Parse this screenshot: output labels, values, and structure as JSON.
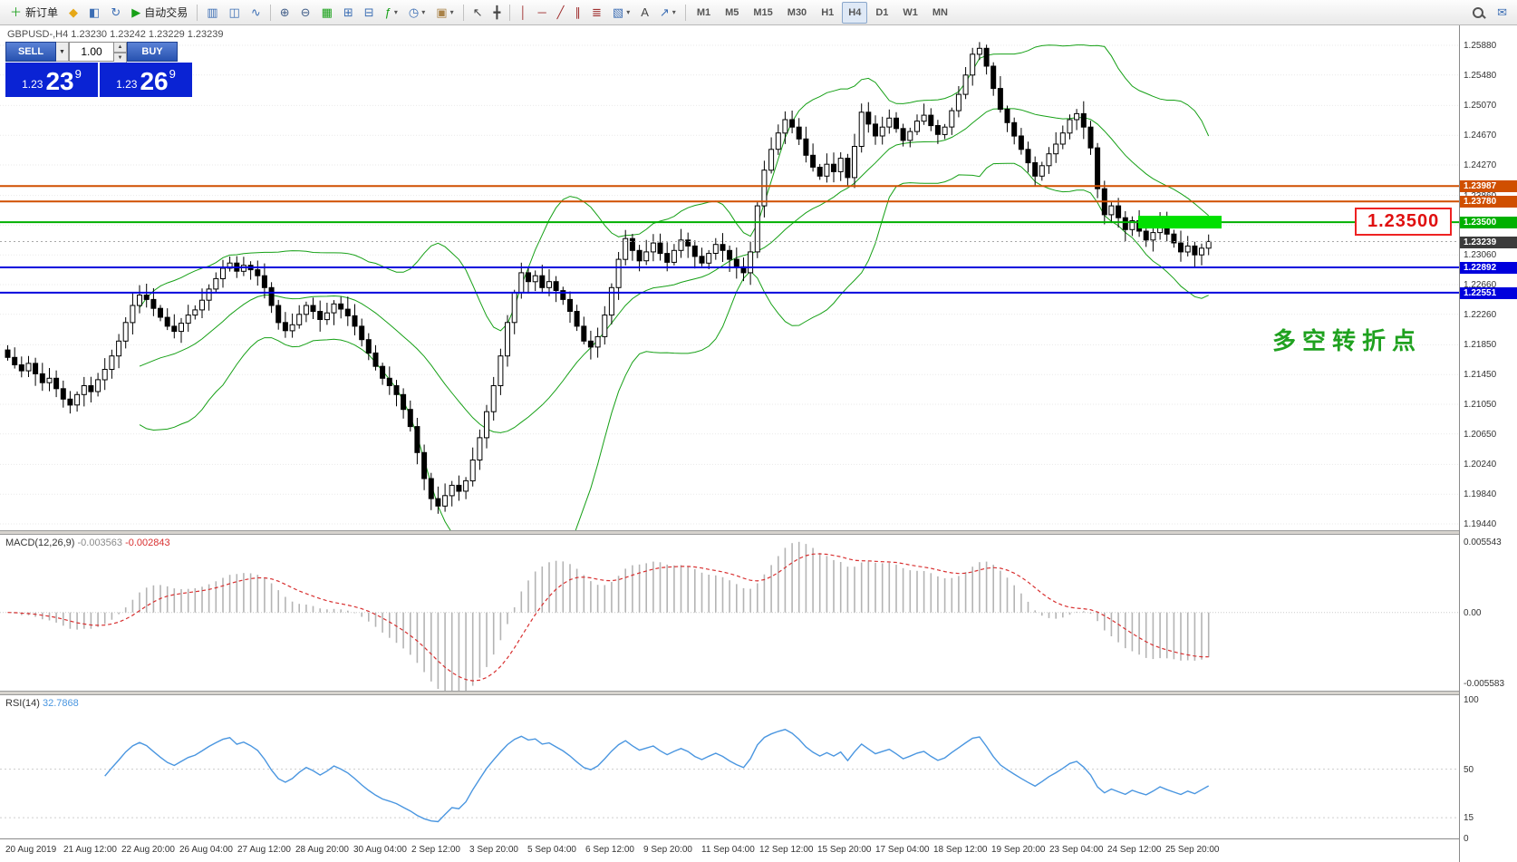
{
  "toolbar": {
    "new_order_label": "新订单",
    "autotrade_label": "自动交易",
    "items": [
      {
        "type": "button",
        "name": "new-order-button",
        "glyph": "＋",
        "glyph_color": "#1fa01f",
        "text": "新订单"
      },
      {
        "type": "button",
        "name": "mql-icon-button",
        "glyph": "◆",
        "glyph_color": "#e6a817"
      },
      {
        "type": "button",
        "name": "profiles-button",
        "glyph": "◧",
        "glyph_color": "#3c6eb4"
      },
      {
        "type": "button",
        "name": "refresh-button",
        "glyph": "↻",
        "glyph_color": "#3c6eb4"
      },
      {
        "type": "button",
        "name": "autotrade-button",
        "glyph": "▶",
        "glyph_color": "#18a018",
        "text": "自动交易"
      },
      {
        "type": "sep"
      },
      {
        "type": "button",
        "name": "bar-chart-button",
        "glyph": "▥",
        "glyph_color": "#3c6eb4"
      },
      {
        "type": "button",
        "name": "candlestick-chart-button",
        "glyph": "◫",
        "glyph_color": "#3c6eb4"
      },
      {
        "type": "button",
        "name": "line-chart-button",
        "glyph": "∿",
        "glyph_color": "#3c6eb4"
      },
      {
        "type": "sep"
      },
      {
        "type": "button",
        "name": "zoom-in-button",
        "glyph": "⊕",
        "glyph_color": "#44608a"
      },
      {
        "type": "button",
        "name": "zoom-out-button",
        "glyph": "⊖",
        "glyph_color": "#44608a"
      },
      {
        "type": "button",
        "name": "auto-arrange-button",
        "glyph": "▦",
        "glyph_color": "#18a018"
      },
      {
        "type": "button",
        "name": "tile-windows-button",
        "glyph": "⊞",
        "glyph_color": "#3c6eb4"
      },
      {
        "type": "button",
        "name": "cascade-windows-button",
        "glyph": "⊟",
        "glyph_color": "#3c6eb4"
      },
      {
        "type": "button",
        "name": "indicators-button",
        "glyph": "ƒ",
        "glyph_color": "#18a018",
        "caret": true
      },
      {
        "type": "button",
        "name": "periods-button",
        "glyph": "◷",
        "glyph_color": "#3c6eb4",
        "caret": true
      },
      {
        "type": "button",
        "name": "templates-button",
        "glyph": "▣",
        "glyph_color": "#a98248",
        "caret": true
      },
      {
        "type": "sep"
      },
      {
        "type": "button",
        "name": "cursor-button",
        "glyph": "↖",
        "glyph_color": "#444444"
      },
      {
        "type": "button",
        "name": "crosshair-button",
        "glyph": "╋",
        "glyph_color": "#444444"
      },
      {
        "type": "sep"
      },
      {
        "type": "button",
        "name": "vertical-line-button",
        "glyph": "│",
        "glyph_color": "#a03030"
      },
      {
        "type": "button",
        "name": "horizontal-line-button",
        "glyph": "─",
        "glyph_color": "#a03030"
      },
      {
        "type": "button",
        "name": "trendline-button",
        "glyph": "╱",
        "glyph_color": "#a03030"
      },
      {
        "type": "button",
        "name": "channel-button",
        "glyph": "∥",
        "glyph_color": "#a03030"
      },
      {
        "type": "button",
        "name": "fibonacci-button",
        "glyph": "≣",
        "glyph_color": "#a03030"
      },
      {
        "type": "button",
        "name": "shapes-button",
        "glyph": "▧",
        "glyph_color": "#3c6eb4",
        "caret": true
      },
      {
        "type": "button",
        "name": "text-button",
        "glyph": "A",
        "glyph_color": "#444444"
      },
      {
        "type": "button",
        "name": "arrows-button",
        "glyph": "↗",
        "glyph_color": "#3c6eb4",
        "caret": true
      },
      {
        "type": "sep"
      },
      {
        "type": "tf",
        "name": "timeframe-m1-button",
        "text": "M1"
      },
      {
        "type": "tf",
        "name": "timeframe-m5-button",
        "text": "M5"
      },
      {
        "type": "tf",
        "name": "timeframe-m15-button",
        "text": "M15"
      },
      {
        "type": "tf",
        "name": "timeframe-m30-button",
        "text": "M30"
      },
      {
        "type": "tf",
        "name": "timeframe-h1-button",
        "text": "H1"
      },
      {
        "type": "tf",
        "name": "timeframe-h4-button",
        "text": "H4",
        "active": true
      },
      {
        "type": "tf",
        "name": "timeframe-d1-button",
        "text": "D1"
      },
      {
        "type": "tf",
        "name": "timeframe-w1-button",
        "text": "W1"
      },
      {
        "type": "tf",
        "name": "timeframe-mn-button",
        "text": "MN"
      },
      {
        "type": "spacer"
      },
      {
        "type": "search",
        "name": "search-button"
      },
      {
        "type": "button",
        "name": "chat-button",
        "glyph": "✉",
        "glyph_color": "#3c6eb4"
      }
    ]
  },
  "chart_header": {
    "symbol_line": "GBPUSD-,H4  1.23230 1.23242 1.23229 1.23239"
  },
  "trade_panel": {
    "volume": "1.00",
    "sell": {
      "label": "SELL",
      "prefix": "1.23",
      "pips": "23",
      "sup": "9"
    },
    "buy": {
      "label": "BUY",
      "prefix": "1.23",
      "pips": "26",
      "sup": "9"
    }
  },
  "annotation": {
    "text": "多空转折点",
    "color": "#1fa11f"
  },
  "price_label_box": "1.23500",
  "levels": [
    {
      "price": 1.23987,
      "label": "1.23987",
      "color": "#d04f00"
    },
    {
      "price": 1.2378,
      "label": "1.23780",
      "color": "#d04f00"
    },
    {
      "price": 1.235,
      "label": "1.23500",
      "color": "#00b000"
    },
    {
      "price": 1.22892,
      "label": "1.22892",
      "color": "#0000dd"
    },
    {
      "price": 1.22551,
      "label": "1.22551",
      "color": "#0000dd"
    }
  ],
  "highlight_zone": {
    "price": 1.235,
    "color": "#00e000"
  },
  "current_price": {
    "price": 1.23239,
    "label": "1.23239",
    "line_color": "#a8a8a8",
    "tag_color": "#3b3b3b"
  },
  "axis": {
    "price_labels": [
      "1.25880",
      "1.25480",
      "1.25070",
      "1.24670",
      "1.24270",
      "1.23860",
      "1.23460",
      "1.23060",
      "1.22660",
      "1.22260",
      "1.21850",
      "1.21450",
      "1.21050",
      "1.20650",
      "1.20240",
      "1.19840",
      "1.19440"
    ]
  },
  "indicators": {
    "macd": {
      "label": "MACD(12,26,9)",
      "value_main": "-0.003563",
      "value_signal": "-0.002843",
      "axis_max": "0.005543",
      "axis_zero": "0.00",
      "axis_min": "-0.005583",
      "histogram_color": "#b4b4b4",
      "signal_color": "#d83030"
    },
    "rsi": {
      "label": "RSI(14)",
      "value": "32.7868",
      "axis_labels": [
        "100",
        "50",
        "15",
        "0"
      ],
      "levels": [
        50,
        15
      ],
      "line_color": "#4a96e0"
    }
  },
  "time_axis": [
    "20 Aug 2019",
    "21 Aug 12:00",
    "22 Aug 20:00",
    "26 Aug 04:00",
    "27 Aug 12:00",
    "28 Aug 20:00",
    "30 Aug 04:00",
    "2 Sep 12:00",
    "3 Sep 20:00",
    "5 Sep 04:00",
    "6 Sep 12:00",
    "9 Sep 20:00",
    "11 Sep 04:00",
    "12 Sep 12:00",
    "15 Sep 20:00",
    "17 Sep 04:00",
    "18 Sep 12:00",
    "19 Sep 20:00",
    "23 Sep 04:00",
    "24 Sep 12:00",
    "25 Sep 20:00"
  ],
  "chart_data": {
    "type": "candlestick",
    "symbol": "GBPUSD",
    "timeframe": "H4",
    "price_range": [
      1.1944,
      1.2588
    ],
    "first_open": 1.2178,
    "last_ohlc": {
      "open": 1.2323,
      "high": 1.23242,
      "low": 1.23229,
      "close": 1.23239
    },
    "bollinger_period": 20,
    "bollinger_dev": 2,
    "bollinger_color": "#16a016",
    "candle_up_color": "#ffffff",
    "candle_down_color": "#000000",
    "closes": [
      1.2168,
      1.2158,
      1.215,
      1.216,
      1.2146,
      1.2134,
      1.214,
      1.2126,
      1.2112,
      1.2104,
      1.2118,
      1.213,
      1.2122,
      1.2138,
      1.2152,
      1.217,
      1.219,
      1.2215,
      1.2238,
      1.2252,
      1.2246,
      1.2234,
      1.2222,
      1.221,
      1.2203,
      1.2214,
      1.2225,
      1.2232,
      1.2245,
      1.226,
      1.2274,
      1.2288,
      1.2295,
      1.2284,
      1.2292,
      1.2286,
      1.2278,
      1.2262,
      1.2238,
      1.2215,
      1.2204,
      1.2212,
      1.2226,
      1.2238,
      1.223,
      1.2219,
      1.2228,
      1.224,
      1.2233,
      1.2224,
      1.221,
      1.2192,
      1.2174,
      1.2156,
      1.214,
      1.213,
      1.2118,
      1.2098,
      1.2075,
      1.204,
      1.2005,
      1.1978,
      1.1968,
      1.1982,
      1.1996,
      1.1988,
      1.2002,
      1.203,
      1.206,
      1.2095,
      1.213,
      1.217,
      1.2215,
      1.2255,
      1.2282,
      1.227,
      1.2278,
      1.2262,
      1.227,
      1.2258,
      1.2246,
      1.223,
      1.221,
      1.219,
      1.2182,
      1.2196,
      1.2225,
      1.2262,
      1.23,
      1.2328,
      1.2312,
      1.2298,
      1.231,
      1.2322,
      1.2308,
      1.2296,
      1.2312,
      1.2326,
      1.2318,
      1.2304,
      1.2295,
      1.2308,
      1.232,
      1.2312,
      1.23,
      1.229,
      1.2282,
      1.231,
      1.2372,
      1.242,
      1.2448,
      1.247,
      1.2488,
      1.2478,
      1.2462,
      1.244,
      1.2424,
      1.2412,
      1.2428,
      1.2418,
      1.2436,
      1.241,
      1.2452,
      1.2498,
      1.2482,
      1.2466,
      1.2478,
      1.249,
      1.2476,
      1.246,
      1.2472,
      1.2486,
      1.2494,
      1.248,
      1.2468,
      1.2478,
      1.25,
      1.2522,
      1.2548,
      1.2576,
      1.2584,
      1.256,
      1.253,
      1.2502,
      1.2484,
      1.2466,
      1.2448,
      1.243,
      1.2412,
      1.2426,
      1.2442,
      1.2455,
      1.247,
      1.2488,
      1.2496,
      1.2478,
      1.245,
      1.2395,
      1.236,
      1.2372,
      1.2356,
      1.234,
      1.2352,
      1.2338,
      1.2326,
      1.2336,
      1.2348,
      1.2334,
      1.2322,
      1.231,
      1.2318,
      1.2306,
      1.2315,
      1.2324
    ]
  }
}
